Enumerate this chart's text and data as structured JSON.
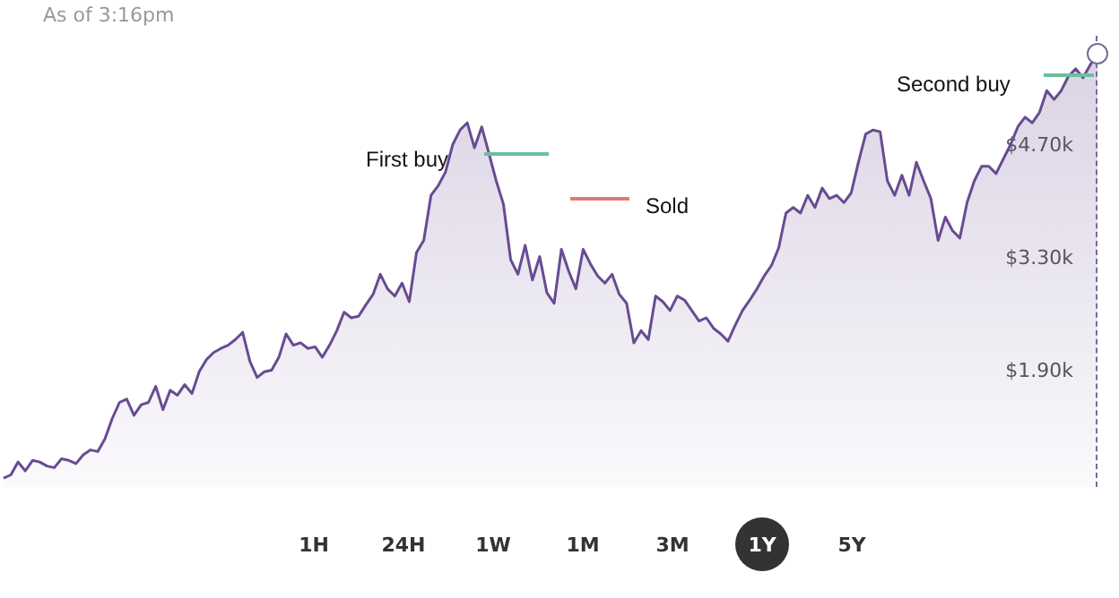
{
  "chart_data": {
    "type": "area",
    "subtitle": "As of 3:16pm",
    "categories": [
      null,
      null,
      null,
      null,
      null,
      null,
      null,
      null,
      null,
      null,
      null,
      null,
      null,
      null,
      null,
      null,
      null,
      null,
      null,
      null,
      null,
      null,
      null,
      null,
      null,
      null,
      null,
      null,
      null,
      null,
      null,
      null,
      null,
      null,
      null,
      null,
      null,
      null,
      null,
      null,
      null,
      null,
      null,
      null,
      null,
      null,
      null,
      null,
      null,
      null,
      null,
      null,
      null,
      null,
      null,
      null,
      null,
      null,
      null,
      null,
      null,
      null,
      null,
      null,
      null,
      null,
      null,
      null,
      null,
      null,
      null,
      null,
      null,
      null,
      null,
      null,
      null,
      null,
      null,
      null,
      null,
      null,
      null,
      null,
      null,
      null,
      null,
      null,
      null,
      null,
      null,
      null,
      null,
      null,
      null,
      null,
      null,
      null,
      null,
      null,
      null,
      null,
      null,
      null,
      null,
      null,
      null,
      null,
      null,
      null,
      null,
      null,
      null,
      null,
      null,
      null,
      null,
      null,
      null,
      null,
      null,
      null,
      null,
      null,
      null,
      null,
      null,
      null,
      null,
      null,
      null,
      null,
      null,
      null,
      null,
      null,
      null,
      null,
      null,
      null,
      null,
      null,
      null,
      null,
      null,
      null,
      null,
      null,
      null,
      null,
      null,
      null
    ],
    "series": [
      {
        "color": "#684b92",
        "values": [
          560,
          600,
          760,
          650,
          780,
          760,
          710,
          690,
          800,
          780,
          740,
          850,
          910,
          890,
          1050,
          1300,
          1500,
          1540,
          1340,
          1470,
          1500,
          1700,
          1410,
          1650,
          1590,
          1720,
          1610,
          1880,
          2030,
          2120,
          2170,
          2210,
          2280,
          2370,
          2010,
          1810,
          1880,
          1900,
          2060,
          2350,
          2210,
          2240,
          2170,
          2190,
          2060,
          2210,
          2390,
          2620,
          2550,
          2570,
          2710,
          2840,
          3090,
          2910,
          2820,
          2980,
          2750,
          3360,
          3510,
          4070,
          4190,
          4360,
          4700,
          4880,
          4970,
          4660,
          4920,
          4590,
          4250,
          3960,
          3270,
          3090,
          3450,
          3020,
          3310,
          2860,
          2730,
          3400,
          3130,
          2910,
          3400,
          3220,
          3070,
          2980,
          3090,
          2840,
          2730,
          2240,
          2390,
          2280,
          2820,
          2750,
          2640,
          2820,
          2770,
          2640,
          2510,
          2550,
          2420,
          2350,
          2260,
          2460,
          2640,
          2770,
          2910,
          3070,
          3200,
          3420,
          3850,
          3920,
          3850,
          4070,
          3920,
          4160,
          4030,
          4070,
          3980,
          4100,
          4480,
          4830,
          4880,
          4860,
          4250,
          4070,
          4320,
          4070,
          4480,
          4250,
          4030,
          3510,
          3800,
          3630,
          3540,
          3980,
          4250,
          4430,
          4430,
          4340,
          4520,
          4700,
          4920,
          5040,
          4970,
          5100,
          5370,
          5260,
          5370,
          5550,
          5640,
          5530,
          5690,
          5820
        ]
      }
    ],
    "ylim": [
      450,
      6050
    ],
    "yticks": [
      {
        "value": 1900,
        "label": "$1.90k"
      },
      {
        "value": 3300,
        "label": "$3.30k"
      },
      {
        "value": 4700,
        "label": "$4.70k"
      }
    ],
    "grid": false,
    "line_style": "solid",
    "annotations": [
      "1H",
      "24H",
      "1W",
      "1M",
      "3M",
      "1Y",
      "5Y",
      "First buy",
      "Sold",
      "Second buy"
    ]
  }
}
